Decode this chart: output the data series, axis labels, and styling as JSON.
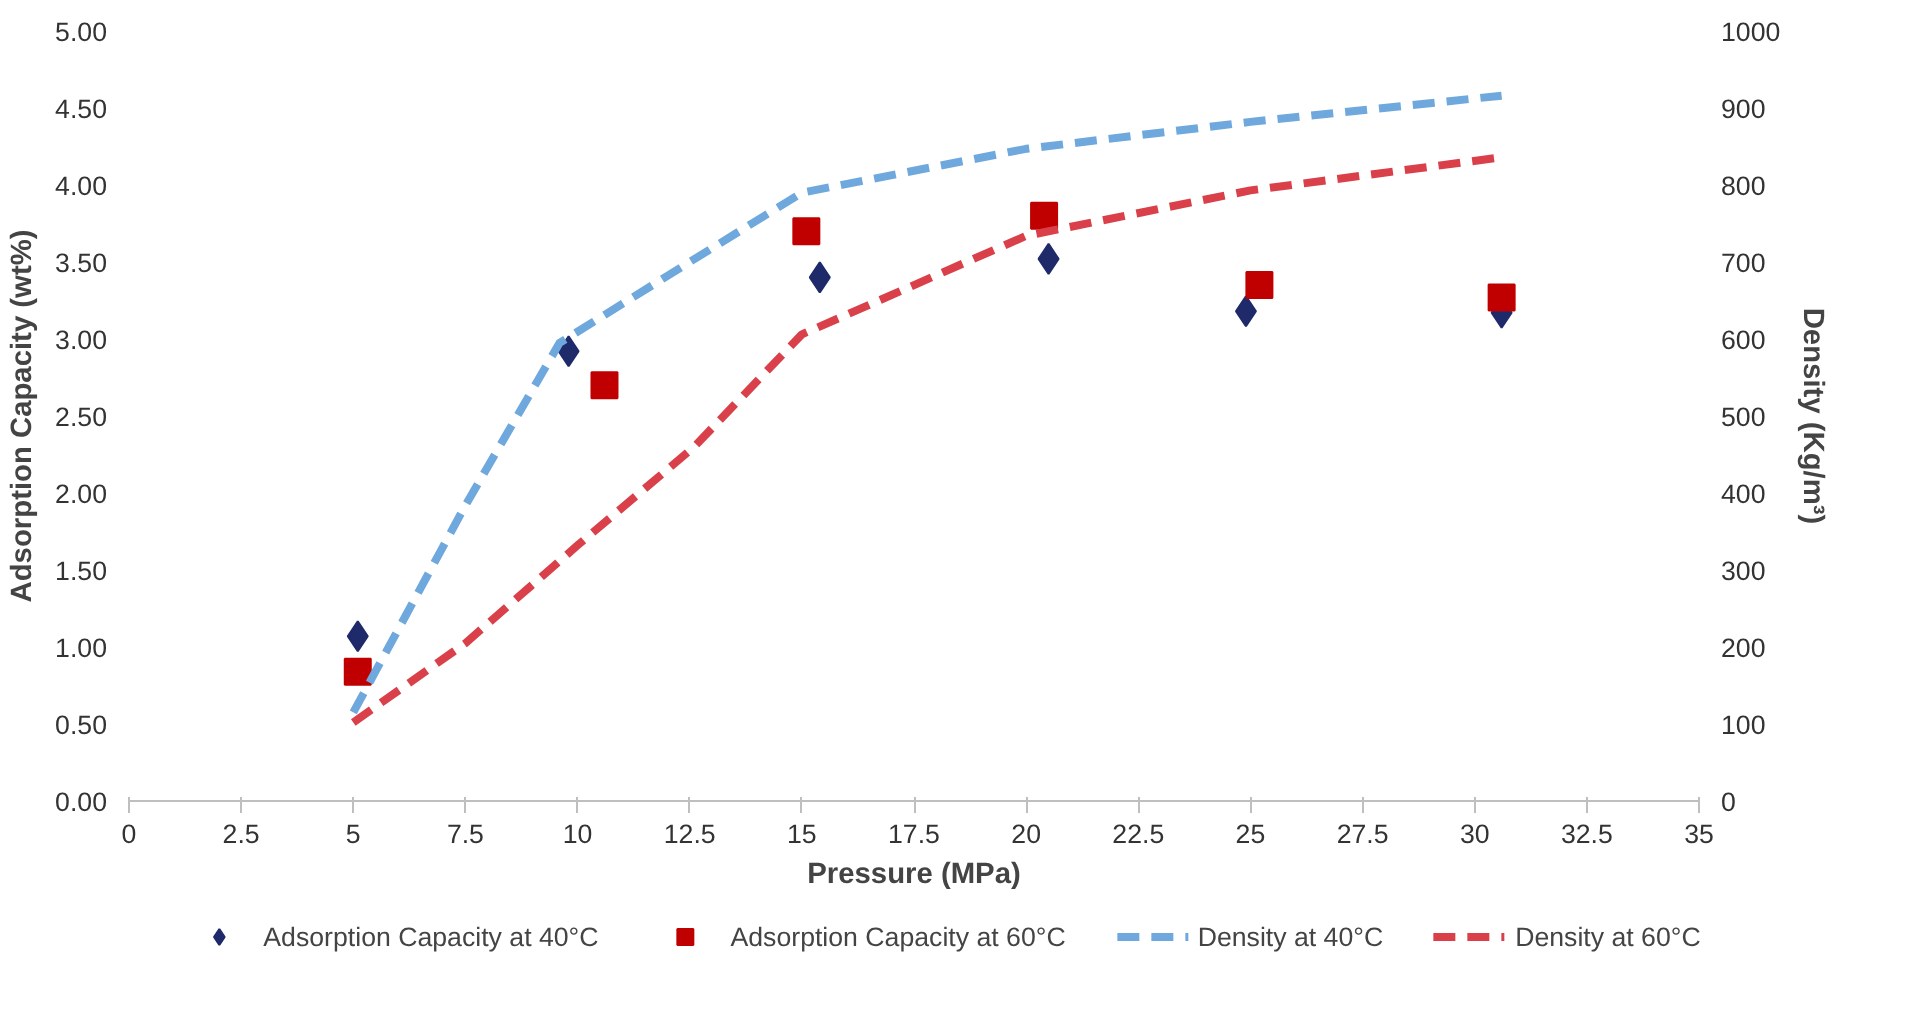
{
  "chart_data": {
    "type": "scatter",
    "xlabel": "Pressure (MPa)",
    "ylabel": "Adsorption Capacity (wt%)",
    "y2label": "Density (Kg/m³)",
    "xlim": [
      0,
      35
    ],
    "xticks": [
      0,
      2.5,
      5,
      7.5,
      10,
      12.5,
      15,
      17.5,
      20,
      22.5,
      25,
      27.5,
      30,
      32.5,
      35
    ],
    "ylim": [
      0,
      5
    ],
    "yticks": [
      {
        "value": 0,
        "label": "0.00"
      },
      {
        "value": 0.5,
        "label": "0.50"
      },
      {
        "value": 1,
        "label": "1.00"
      },
      {
        "value": 1.5,
        "label": "1.50"
      },
      {
        "value": 2,
        "label": "2.00"
      },
      {
        "value": 2.5,
        "label": "2.50"
      },
      {
        "value": 3,
        "label": "3.00"
      },
      {
        "value": 3.5,
        "label": "3.50"
      },
      {
        "value": 4,
        "label": "4.00"
      },
      {
        "value": 4.5,
        "label": "4.50"
      },
      {
        "value": 5,
        "label": "5.00"
      }
    ],
    "y2lim": [
      0,
      1000
    ],
    "y2ticks": [
      0,
      100,
      200,
      300,
      400,
      500,
      600,
      700,
      800,
      900,
      1000
    ],
    "legend": "bottom",
    "series": [
      {
        "name": "Adsorption Capacity at 40°C",
        "marker": "diamond",
        "color": "#1f2a6b",
        "x": [
          5.1,
          9.8,
          15.4,
          20.5,
          24.9,
          30.6
        ],
        "values": [
          1.07,
          2.92,
          3.4,
          3.52,
          3.18,
          3.17
        ]
      },
      {
        "name": "Adsorption Capacity at 60°C",
        "marker": "square",
        "color": "#c00000",
        "x": [
          5.1,
          10.6,
          15.1,
          20.4,
          25.2,
          30.6
        ],
        "values": [
          0.84,
          2.7,
          3.7,
          3.8,
          3.35,
          3.27
        ]
      },
      {
        "name": "Density at 40°C",
        "type": "line",
        "axis": "y2",
        "line_style": "dashed",
        "color": "#6fa8dc",
        "x": [
          5,
          7.5,
          9.6,
          12.5,
          15,
          20,
          25,
          30.6
        ],
        "values": [
          115,
          384,
          595,
          700,
          790,
          847,
          882,
          916
        ]
      },
      {
        "name": "Density at 60°C",
        "type": "line",
        "axis": "y2",
        "line_style": "dashed",
        "color": "#d9404a",
        "x": [
          5,
          7.5,
          10,
          12.6,
          15,
          20,
          25,
          30.6
        ],
        "values": [
          102,
          205,
          332,
          460,
          606,
          734,
          793,
          836
        ]
      }
    ]
  }
}
